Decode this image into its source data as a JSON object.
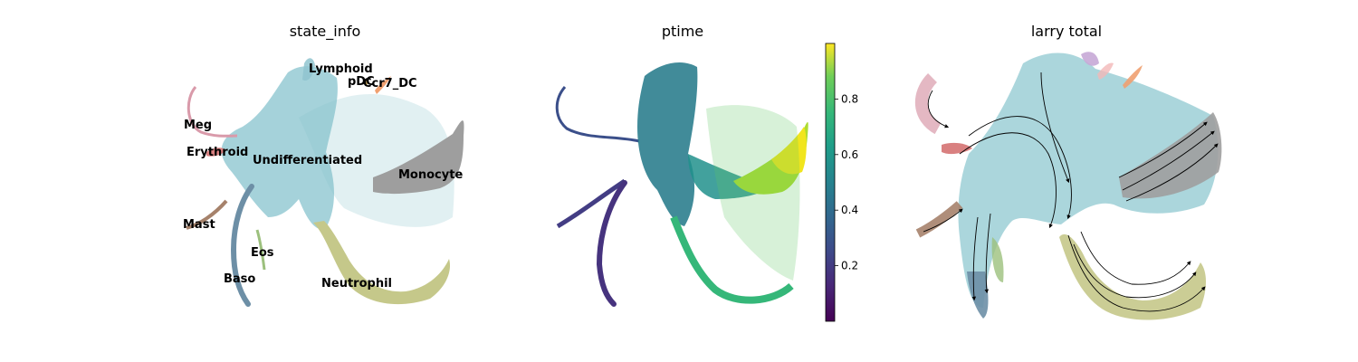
{
  "chart_data": [
    {
      "type": "scatter",
      "title": "state_info",
      "legend": "on data",
      "series": [
        {
          "name": "Lymphoid",
          "color": "#8fc4cf"
        },
        {
          "name": "pDC",
          "color": "#d7b56a"
        },
        {
          "name": "Ccr7_DC",
          "color": "#f0a070"
        },
        {
          "name": "Meg",
          "color": "#d99aaa"
        },
        {
          "name": "Erythroid",
          "color": "#d98080"
        },
        {
          "name": "Undifferentiated",
          "color": "#87c3cd"
        },
        {
          "name": "Monocyte",
          "color": "#9e9e9e"
        },
        {
          "name": "Mast",
          "color": "#a6826b"
        },
        {
          "name": "Eos",
          "color": "#9cc07d"
        },
        {
          "name": "Baso",
          "color": "#6d8fa6"
        },
        {
          "name": "Neutrophil",
          "color": "#c5c88a"
        }
      ]
    },
    {
      "type": "scatter",
      "title": "ptime",
      "colormap": "viridis",
      "colorbar": {
        "range": [
          0,
          1
        ],
        "ticks": [
          0.2,
          0.4,
          0.6,
          0.8
        ]
      }
    },
    {
      "type": "scatter",
      "title": "larry total",
      "overlay": "streamlines with arrows"
    }
  ]
}
